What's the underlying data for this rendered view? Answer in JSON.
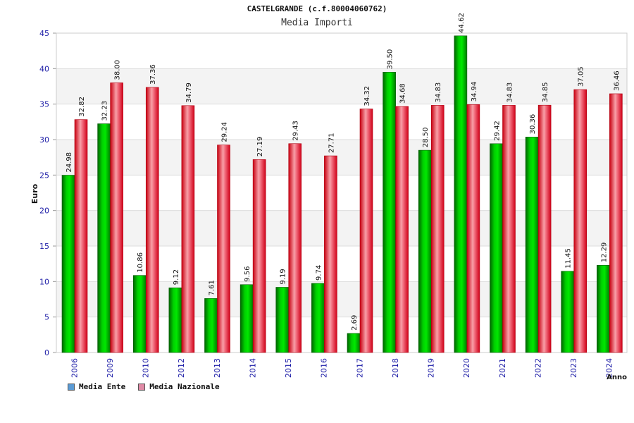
{
  "chart_data": {
    "type": "bar",
    "title": "CASTELGRANDE (c.f.80004060762)",
    "subtitle": "Media Importi",
    "xlabel": "Anno",
    "ylabel": "Euro",
    "ylim": [
      0,
      45
    ],
    "yticks": [
      0,
      5,
      10,
      15,
      20,
      25,
      30,
      35,
      40,
      45
    ],
    "grid": true,
    "categories": [
      "2006",
      "2009",
      "2010",
      "2012",
      "2013",
      "2014",
      "2015",
      "2016",
      "2017",
      "2018",
      "2019",
      "2020",
      "2021",
      "2022",
      "2023",
      "2024"
    ],
    "series": [
      {
        "name": "Media Ente",
        "color": "#00b000",
        "values": [
          24.98,
          32.23,
          10.86,
          9.12,
          7.61,
          9.56,
          9.19,
          9.74,
          2.69,
          39.5,
          28.5,
          44.62,
          29.42,
          30.36,
          11.45,
          12.29
        ],
        "labels": [
          "24.98",
          "32.23",
          "10.86",
          "9.12",
          "7.61",
          "9.56",
          "9.19",
          "9.74",
          "2.69",
          "39.50",
          "28.50",
          "44.62",
          "29.42",
          "30.36",
          "11.45",
          "12.29"
        ]
      },
      {
        "name": "Media Nazionale",
        "color": "#e0102a",
        "values": [
          32.82,
          38.0,
          37.36,
          34.79,
          29.24,
          27.19,
          29.43,
          27.71,
          34.32,
          34.68,
          34.83,
          34.94,
          34.83,
          34.85,
          37.05,
          36.46
        ],
        "labels": [
          "32.82",
          "38.00",
          "37.36",
          "34.79",
          "29.24",
          "27.19",
          "29.43",
          "27.71",
          "34.32",
          "34.68",
          "34.83",
          "34.94",
          "34.83",
          "34.85",
          "37.05",
          "36.46"
        ]
      }
    ],
    "legend": {
      "placement": "bottom-left",
      "items": [
        {
          "label": "Media Ente",
          "color": "#5b9bd5"
        },
        {
          "label": "Media Nazionale",
          "color": "#e08aa6"
        }
      ]
    }
  }
}
